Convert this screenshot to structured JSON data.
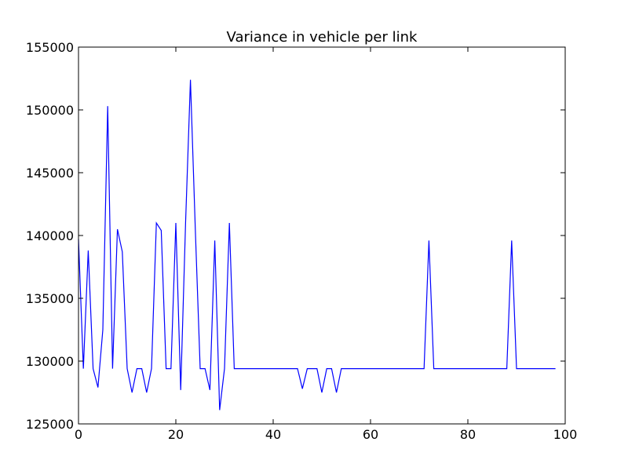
{
  "chart_data": {
    "type": "line",
    "title": "Variance in vehicle per link",
    "xlabel": "",
    "ylabel": "",
    "xlim": [
      0,
      100
    ],
    "ylim": [
      125000,
      155000
    ],
    "x_ticks": [
      0,
      20,
      40,
      60,
      80,
      100
    ],
    "y_ticks": [
      125000,
      130000,
      135000,
      140000,
      145000,
      150000,
      155000
    ],
    "x_tick_labels": [
      "0",
      "20",
      "40",
      "60",
      "80",
      "100"
    ],
    "y_tick_labels": [
      "125000",
      "130000",
      "135000",
      "140000",
      "145000",
      "150000",
      "155000"
    ],
    "grid": false,
    "series": [
      {
        "color": "#0000ff",
        "x": [
          0,
          1,
          2,
          3,
          4,
          5,
          6,
          7,
          8,
          9,
          10,
          11,
          12,
          13,
          14,
          15,
          16,
          17,
          18,
          19,
          20,
          21,
          22,
          23,
          24,
          25,
          26,
          27,
          28,
          29,
          30,
          31,
          32,
          33,
          34,
          35,
          36,
          37,
          38,
          39,
          40,
          41,
          42,
          43,
          44,
          45,
          46,
          47,
          48,
          49,
          50,
          51,
          52,
          53,
          54,
          55,
          56,
          57,
          58,
          59,
          60,
          61,
          62,
          63,
          64,
          65,
          66,
          67,
          68,
          69,
          70,
          71,
          72,
          73,
          74,
          75,
          76,
          77,
          78,
          79,
          80,
          81,
          82,
          83,
          84,
          85,
          86,
          87,
          88,
          89,
          90,
          91,
          92,
          93,
          94,
          95,
          96,
          97,
          98
        ],
        "y": [
          139700,
          129400,
          138800,
          129400,
          127900,
          132500,
          150300,
          129400,
          140500,
          138700,
          129400,
          127500,
          129400,
          129400,
          127500,
          129400,
          141000,
          140400,
          129400,
          129400,
          141000,
          127700,
          141000,
          152400,
          140500,
          129400,
          129400,
          127700,
          139600,
          126100,
          129400,
          141000,
          129400,
          129400,
          129400,
          129400,
          129400,
          129400,
          129400,
          129400,
          129400,
          129400,
          129400,
          129400,
          129400,
          129400,
          127800,
          129400,
          129400,
          129400,
          127500,
          129400,
          129400,
          127500,
          129400,
          129400,
          129400,
          129400,
          129400,
          129400,
          129400,
          129400,
          129400,
          129400,
          129400,
          129400,
          129400,
          129400,
          129400,
          129400,
          129400,
          129400,
          139600,
          129400,
          129400,
          129400,
          129400,
          129400,
          129400,
          129400,
          129400,
          129400,
          129400,
          129400,
          129400,
          129400,
          129400,
          129400,
          129400,
          139600,
          129400,
          129400,
          129400,
          129400,
          129400,
          129400,
          129400,
          129400,
          129400
        ]
      }
    ]
  }
}
